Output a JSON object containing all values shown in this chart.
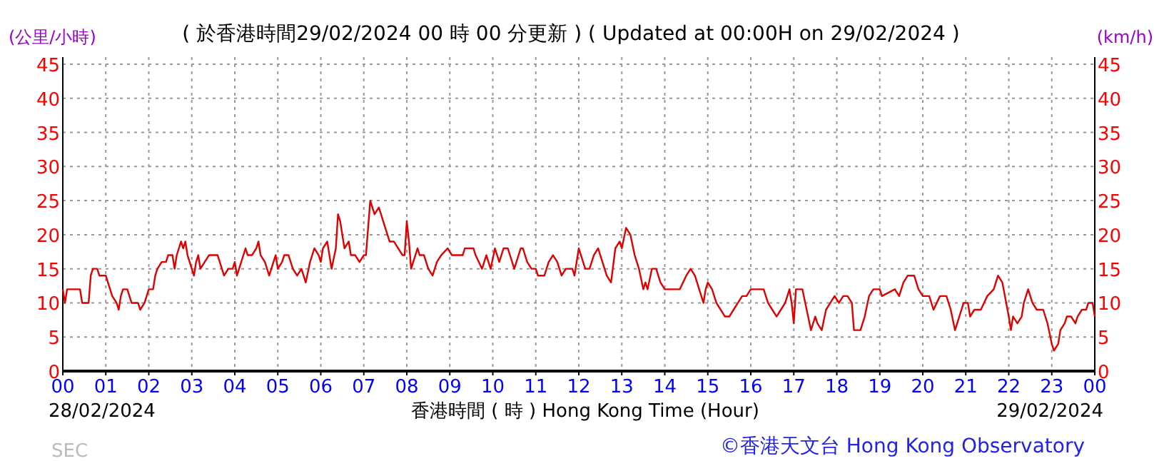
{
  "chart_data": {
    "type": "line",
    "title": "( 於香港時間29/02/2024 00 時 00 分更新 ) ( Updated at 00:00H on 29/02/2024 )",
    "xlabel": "香港時間 ( 時 ) Hong Kong Time (Hour)",
    "ylabel": "(公里/小時)",
    "y2label": "(km/h)",
    "annotations": [
      "28/02/2024",
      "29/02/2024",
      "©香港天文台 Hong Kong Observatory",
      "SEC"
    ],
    "xlim": [
      0,
      24
    ],
    "xticks": [
      {
        "value": 0,
        "label": "00"
      },
      {
        "value": 1,
        "label": "01"
      },
      {
        "value": 2,
        "label": "02"
      },
      {
        "value": 3,
        "label": "03"
      },
      {
        "value": 4,
        "label": "04"
      },
      {
        "value": 5,
        "label": "05"
      },
      {
        "value": 6,
        "label": "06"
      },
      {
        "value": 7,
        "label": "07"
      },
      {
        "value": 8,
        "label": "08"
      },
      {
        "value": 9,
        "label": "09"
      },
      {
        "value": 10,
        "label": "10"
      },
      {
        "value": 11,
        "label": "11"
      },
      {
        "value": 12,
        "label": "12"
      },
      {
        "value": 13,
        "label": "13"
      },
      {
        "value": 14,
        "label": "14"
      },
      {
        "value": 15,
        "label": "15"
      },
      {
        "value": 16,
        "label": "16"
      },
      {
        "value": 17,
        "label": "17"
      },
      {
        "value": 18,
        "label": "18"
      },
      {
        "value": 19,
        "label": "19"
      },
      {
        "value": 20,
        "label": "20"
      },
      {
        "value": 21,
        "label": "21"
      },
      {
        "value": 22,
        "label": "22"
      },
      {
        "value": 23,
        "label": "23"
      },
      {
        "value": 24,
        "label": "00"
      }
    ],
    "ylim": [
      0,
      45
    ],
    "yticks": [
      0,
      5,
      10,
      15,
      20,
      25,
      30,
      35,
      40,
      45
    ],
    "y2lim": [
      0,
      45
    ],
    "y2ticks": [
      0,
      5,
      10,
      15,
      20,
      25,
      30,
      35,
      40,
      45
    ],
    "grid": true,
    "line_style": "solid",
    "marker": "none",
    "series": [
      {
        "color": "#e00000",
        "x": [
          0,
          0.05,
          0.1,
          0.4,
          0.45,
          0.6,
          0.65,
          0.7,
          0.8,
          0.85,
          1.0,
          1.05,
          1.15,
          1.25,
          1.3,
          1.35,
          1.4,
          1.5,
          1.6,
          1.75,
          1.8,
          1.9,
          2.0,
          2.1,
          2.15,
          2.2,
          2.3,
          2.4,
          2.45,
          2.55,
          2.6,
          2.65,
          2.7,
          2.75,
          2.8,
          2.85,
          2.9,
          3.0,
          3.05,
          3.1,
          3.15,
          3.2,
          3.3,
          3.4,
          3.6,
          3.7,
          3.75,
          3.85,
          3.95,
          4.0,
          4.05,
          4.15,
          4.25,
          4.3,
          4.4,
          4.5,
          4.55,
          4.6,
          4.7,
          4.8,
          4.9,
          4.95,
          5.0,
          5.1,
          5.15,
          5.25,
          5.35,
          5.45,
          5.55,
          5.65,
          5.75,
          5.85,
          5.95,
          6.0,
          6.05,
          6.15,
          6.2,
          6.25,
          6.35,
          6.4,
          6.45,
          6.55,
          6.65,
          6.7,
          6.8,
          6.9,
          7.0,
          7.05,
          7.1,
          7.15,
          7.25,
          7.35,
          7.4,
          7.5,
          7.6,
          7.7,
          7.8,
          7.9,
          7.95,
          8.0,
          8.05,
          8.1,
          8.15,
          8.25,
          8.3,
          8.4,
          8.5,
          8.6,
          8.7,
          8.8,
          8.95,
          9.05,
          9.3,
          9.35,
          9.55,
          9.6,
          9.75,
          9.85,
          9.95,
          10.05,
          10.15,
          10.25,
          10.35,
          10.45,
          10.5,
          10.65,
          10.7,
          10.8,
          10.9,
          11.0,
          11.05,
          11.2,
          11.3,
          11.4,
          11.5,
          11.6,
          11.7,
          11.85,
          11.9,
          12.0,
          12.05,
          12.15,
          12.25,
          12.35,
          12.45,
          12.5,
          12.65,
          12.75,
          12.85,
          12.95,
          13.0,
          13.1,
          13.2,
          13.3,
          13.4,
          13.5,
          13.55,
          13.6,
          13.7,
          13.8,
          13.9,
          14.0,
          14.2,
          14.35,
          14.5,
          14.6,
          14.7,
          14.8,
          14.9,
          14.95,
          15.0,
          15.1,
          15.2,
          15.3,
          15.4,
          15.5,
          15.6,
          15.7,
          15.8,
          15.9,
          16.0,
          16.3,
          16.4,
          16.5,
          16.6,
          16.7,
          16.8,
          16.9,
          16.95,
          17.0,
          17.05,
          17.2,
          17.3,
          17.4,
          17.5,
          17.55,
          17.65,
          17.75,
          17.85,
          17.95,
          18.05,
          18.15,
          18.25,
          18.35,
          18.4,
          18.55,
          18.65,
          18.75,
          18.85,
          19.0,
          19.05,
          19.35,
          19.45,
          19.55,
          19.65,
          19.8,
          19.9,
          20.0,
          20.15,
          20.25,
          20.4,
          20.55,
          20.65,
          20.75,
          20.85,
          20.95,
          21.05,
          21.1,
          21.2,
          21.35,
          21.5,
          21.65,
          21.75,
          21.85,
          22.0,
          22.05,
          22.1,
          22.2,
          22.3,
          22.35,
          22.45,
          22.55,
          22.65,
          22.8,
          22.9,
          23.0,
          23.05,
          23.15,
          23.2,
          23.3,
          23.35,
          23.45,
          23.55,
          23.6,
          23.7,
          23.8,
          23.85,
          23.95,
          24.0
        ],
        "values": [
          12,
          10,
          12,
          12,
          10,
          10,
          14,
          15,
          15,
          14,
          14,
          13,
          11,
          10,
          9,
          11,
          12,
          12,
          10,
          10,
          9,
          10,
          12,
          12,
          14,
          15,
          16,
          16,
          17,
          17,
          15,
          17,
          18,
          19,
          18,
          19,
          17,
          15,
          14,
          16,
          17,
          15,
          16,
          17,
          17,
          15,
          14,
          15,
          15,
          16,
          14,
          16,
          18,
          17,
          17,
          18,
          19,
          17,
          16,
          14,
          16,
          17,
          15,
          16,
          17,
          17,
          15,
          14,
          15,
          13,
          16,
          18,
          17,
          16,
          18,
          19,
          17,
          15,
          18,
          23,
          22,
          18,
          19,
          17,
          17,
          16,
          17,
          17,
          21,
          25,
          23,
          24,
          23,
          21,
          19,
          19,
          18,
          17,
          17,
          22,
          19,
          15,
          16,
          18,
          17,
          17,
          15,
          14,
          16,
          17,
          18,
          17,
          17,
          18,
          18,
          17,
          15,
          17,
          15,
          18,
          16,
          18,
          18,
          16,
          15,
          18,
          18,
          16,
          15,
          15,
          14,
          14,
          16,
          17,
          16,
          14,
          15,
          15,
          14,
          18,
          17,
          15,
          15,
          17,
          18,
          17,
          14,
          13,
          18,
          19,
          18,
          21,
          20,
          17,
          15,
          12,
          13,
          12,
          15,
          15,
          13,
          12,
          12,
          12,
          14,
          15,
          14,
          12,
          10,
          12,
          13,
          12,
          10,
          9,
          8,
          8,
          9,
          10,
          11,
          11,
          12,
          12,
          10,
          9,
          8,
          9,
          10,
          12,
          10,
          7,
          12,
          12,
          9,
          6,
          8,
          7,
          6,
          9,
          10,
          11,
          10,
          11,
          11,
          10,
          6,
          6,
          8,
          11,
          12,
          12,
          11,
          12,
          11,
          13,
          14,
          14,
          12,
          11,
          11,
          9,
          11,
          11,
          9,
          6,
          8,
          10,
          10,
          8,
          9,
          9,
          11,
          12,
          14,
          13,
          8,
          6,
          8,
          7,
          8,
          10,
          12,
          10,
          9,
          9,
          7,
          4,
          3,
          4,
          6,
          7,
          8,
          8,
          7,
          8,
          9,
          9,
          10,
          10,
          8
        ]
      }
    ]
  }
}
